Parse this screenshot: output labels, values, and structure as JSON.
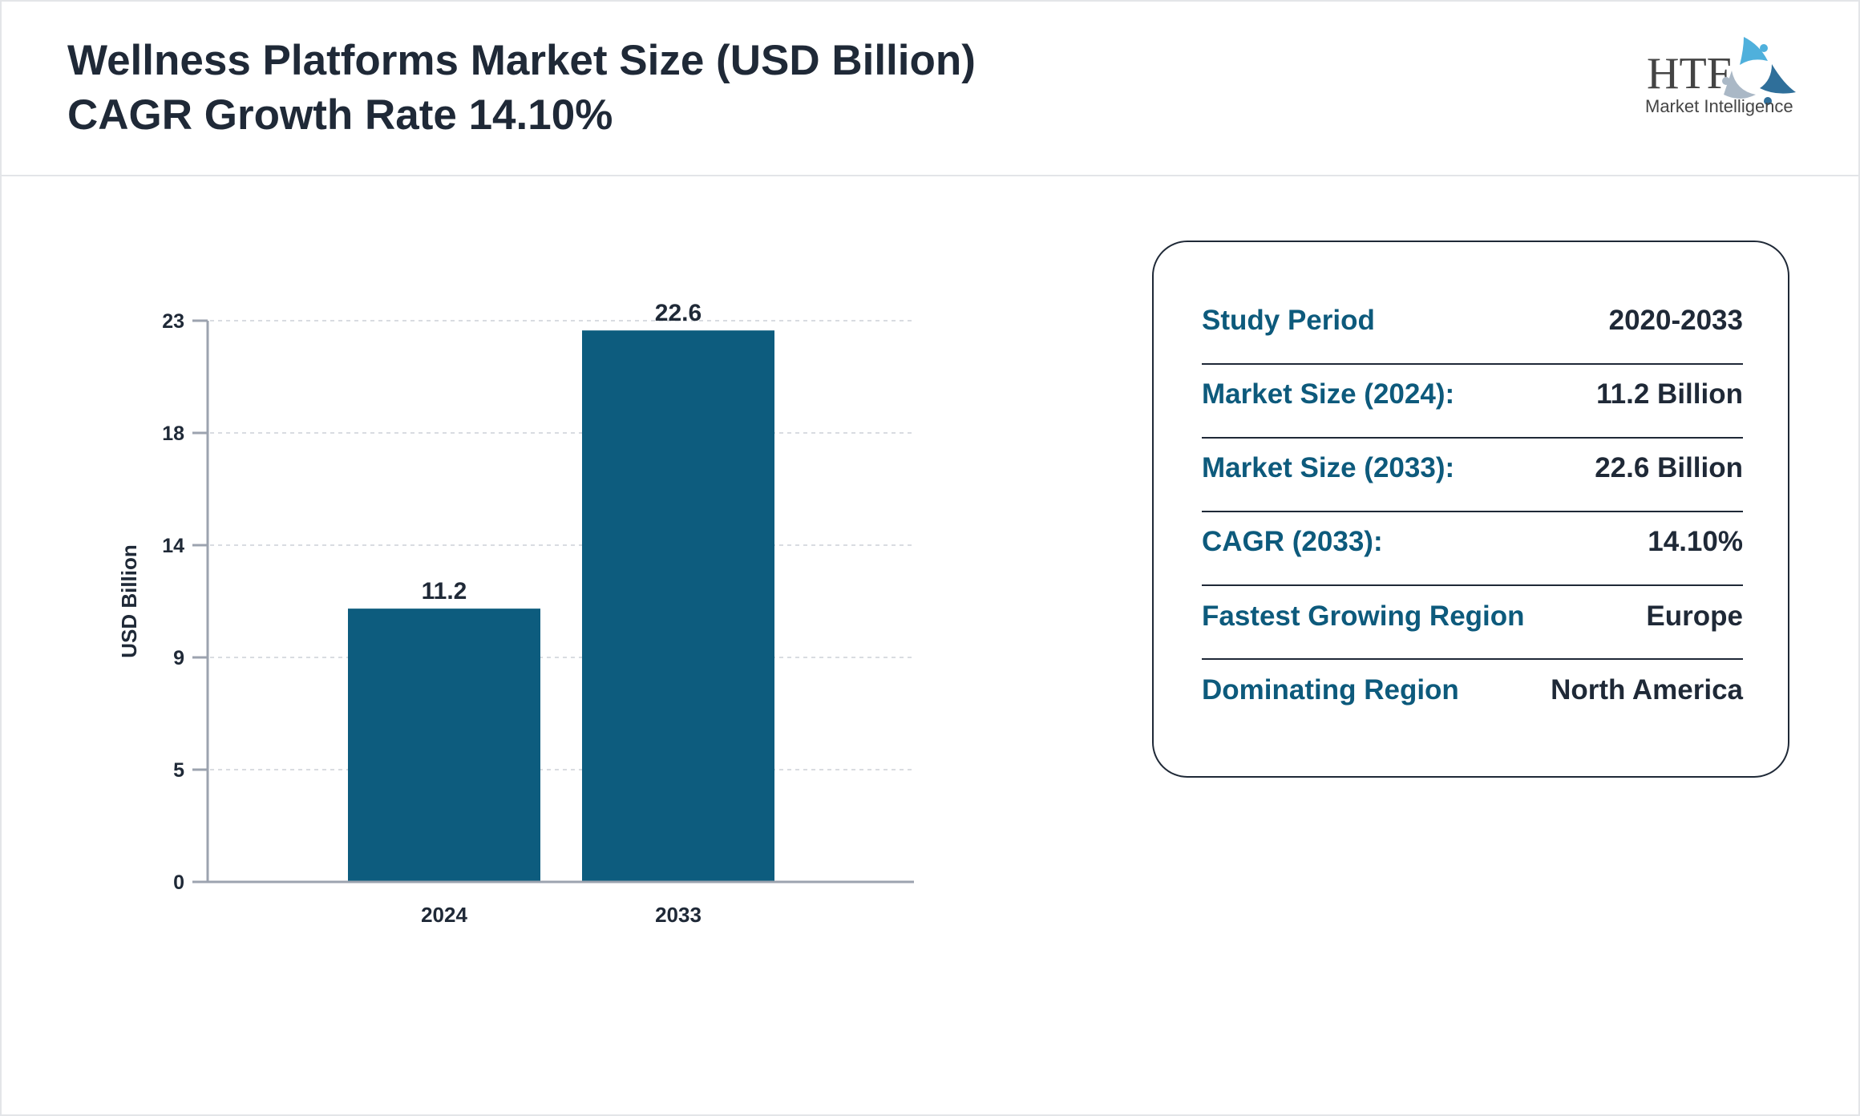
{
  "header": {
    "title_line1": "Wellness Platforms Market Size (USD Billion)",
    "title_line2": "CAGR Growth Rate 14.10%"
  },
  "logo": {
    "text_main": "HTF",
    "text_sub": "Market Intelligence"
  },
  "chart_data": {
    "type": "bar",
    "categories": [
      "2024",
      "2033"
    ],
    "values": [
      11.2,
      22.6
    ],
    "data_labels": [
      "11.2",
      "22.6"
    ],
    "ylabel": "USD Billion",
    "xlabel": "",
    "ylim": [
      0,
      23
    ],
    "yticks": [
      "0",
      "5",
      "9",
      "14",
      "18",
      "23"
    ],
    "grid": true,
    "bar_color": "#0d5c7e"
  },
  "info": {
    "rows": [
      {
        "label": "Study Period",
        "value": "2020-2033"
      },
      {
        "label": "Market Size (2024):",
        "value": "11.2 Billion"
      },
      {
        "label": "Market Size (2033):",
        "value": "22.6 Billion"
      },
      {
        "label": "CAGR (2033):",
        "value": "14.10%"
      },
      {
        "label": "Fastest Growing Region",
        "value": "Europe"
      },
      {
        "label": "Dominating Region",
        "value": "North America"
      }
    ]
  }
}
